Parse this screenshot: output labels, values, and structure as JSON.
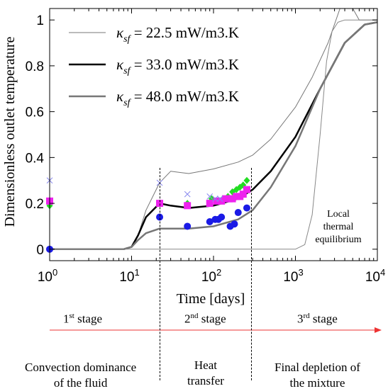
{
  "chart_data": {
    "type": "line",
    "xlabel": "Time [days]",
    "ylabel": "Dimensionless outlet temperature",
    "xscale": "log",
    "xlim": [
      1,
      10000
    ],
    "ylim": [
      -0.05,
      1.05
    ],
    "x_tick_labels": [
      {
        "value": 1,
        "base": "10",
        "exp": "0"
      },
      {
        "value": 10,
        "base": "10",
        "exp": "1"
      },
      {
        "value": 100,
        "base": "10",
        "exp": "2"
      },
      {
        "value": 1000,
        "base": "10",
        "exp": "3"
      },
      {
        "value": 10000,
        "base": "10",
        "exp": "4"
      }
    ],
    "y_tick_labels": [
      {
        "value": 0,
        "label": "0"
      },
      {
        "value": 0.2,
        "label": "0.2"
      },
      {
        "value": 0.4,
        "label": "0.4"
      },
      {
        "value": 0.6,
        "label": "0.6"
      },
      {
        "value": 0.8,
        "label": "0.8"
      },
      {
        "value": 1,
        "label": "1"
      }
    ],
    "legend_position": "top-left",
    "series": [
      {
        "name": "κsf = 22.5 mW/m3.K",
        "legend_symbol": "κ",
        "legend_sub": "sf",
        "legend_rest": " = 22.5 mW/m3.K",
        "color": "#777777",
        "width": 1,
        "x": [
          1,
          8,
          10,
          12,
          15,
          22,
          30,
          50,
          100,
          200,
          300,
          500,
          1000,
          1600,
          2500,
          3500,
          4500,
          6000,
          10000
        ],
        "y": [
          0,
          0,
          0.01,
          0.06,
          0.17,
          0.29,
          0.34,
          0.33,
          0.35,
          0.38,
          0.41,
          0.48,
          0.62,
          0.75,
          0.9,
          1.05,
          1.08,
          1.0,
          1.0
        ]
      },
      {
        "name": "κsf = 33.0 mW/m3.K",
        "legend_symbol": "κ",
        "legend_sub": "sf",
        "legend_rest": " = 33.0 mW/m3.K",
        "color": "#000000",
        "width": 2.5,
        "x": [
          1,
          8,
          10,
          12,
          15,
          22,
          30,
          50,
          100,
          200,
          300,
          500,
          1000,
          2000,
          4000,
          7000,
          10000
        ],
        "y": [
          0,
          0,
          0.01,
          0.06,
          0.14,
          0.2,
          0.19,
          0.18,
          0.19,
          0.22,
          0.26,
          0.34,
          0.49,
          0.7,
          0.9,
          0.98,
          0.99
        ]
      },
      {
        "name": "κsf = 48.0 mW/m3.K",
        "legend_symbol": "κ",
        "legend_sub": "sf",
        "legend_rest": " = 48.0 mW/m3.K",
        "color": "#777777",
        "width": 2.5,
        "x": [
          1,
          8,
          10,
          12,
          15,
          22,
          30,
          50,
          100,
          200,
          300,
          500,
          1000,
          2000,
          4000,
          7000,
          10000
        ],
        "y": [
          0,
          0,
          0.01,
          0.04,
          0.07,
          0.09,
          0.09,
          0.09,
          0.1,
          0.13,
          0.17,
          0.27,
          0.45,
          0.7,
          0.9,
          0.98,
          0.99
        ]
      },
      {
        "name": "Local thermal equilibrium",
        "color": "#888888",
        "width": 1,
        "x": [
          1,
          1000,
          1300,
          1600,
          2000,
          2400,
          2800,
          3300,
          4000,
          10000
        ],
        "y": [
          0,
          0,
          0.02,
          0.15,
          0.5,
          0.82,
          0.95,
          0.99,
          1.0,
          1.0
        ]
      }
    ],
    "markers": [
      {
        "shape": "circle",
        "color": "#1a1ae6",
        "x": [
          1,
          22,
          48,
          90,
          105,
          115,
          125,
          160,
          180,
          200,
          255
        ],
        "y": [
          0,
          0.14,
          0.1,
          0.12,
          0.13,
          0.13,
          0.14,
          0.1,
          0.11,
          0.16,
          0.18
        ]
      },
      {
        "shape": "diamond",
        "color": "#22dd22",
        "x": [
          1,
          22,
          48,
          95,
          110,
          130,
          150,
          170,
          190,
          210,
          230,
          255
        ],
        "y": [
          0.19,
          0.2,
          0.2,
          0.22,
          0.21,
          0.22,
          0.23,
          0.25,
          0.26,
          0.27,
          0.28,
          0.3
        ]
      },
      {
        "shape": "square",
        "color": "#ee22ee",
        "x": [
          1,
          22,
          48,
          90,
          110,
          125,
          140,
          155,
          170,
          190,
          210,
          230,
          255
        ],
        "y": [
          0.21,
          0.2,
          0.19,
          0.2,
          0.21,
          0.21,
          0.22,
          0.22,
          0.22,
          0.23,
          0.23,
          0.24,
          0.26
        ]
      },
      {
        "shape": "x",
        "color": "#8888ee",
        "x": [
          1,
          22,
          48,
          90,
          105,
          120
        ],
        "y": [
          0.3,
          0.29,
          0.24,
          0.23,
          0.22,
          0.22
        ]
      }
    ],
    "annotation": [
      "Local",
      "thermal",
      "equilibrium"
    ]
  },
  "stages": {
    "stage1": {
      "num": "1",
      "sup": "st",
      "word": " stage"
    },
    "stage2": {
      "num": "2",
      "sup": "nd",
      "word": " stage"
    },
    "stage3": {
      "num": "3",
      "sup": "rd",
      "word": " stage"
    },
    "desc1": [
      "Convection dominance",
      "of the fluid"
    ],
    "desc2": [
      "Heat",
      "transfer"
    ],
    "desc3": [
      "Final depletion of",
      "the mixture"
    ],
    "arrow_color": "#ee3333"
  }
}
